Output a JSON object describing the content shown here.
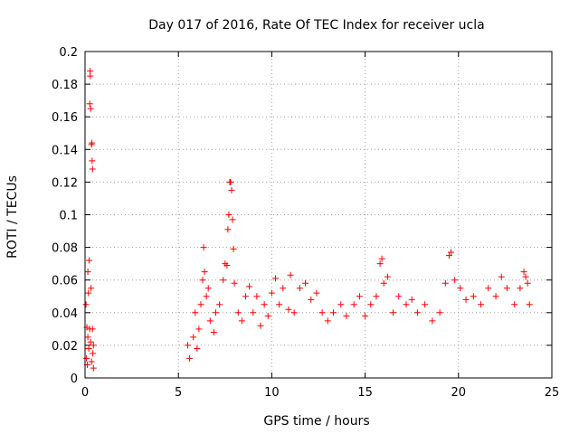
{
  "chart_data": {
    "type": "scatter",
    "title": "Day 017 of 2016, Rate Of TEC Index for receiver ucla",
    "xlabel": "GPS time / hours",
    "ylabel": "ROTI / TECUs",
    "xlim": [
      0,
      25
    ],
    "ylim": [
      0,
      0.2
    ],
    "xticks": [
      0,
      5,
      10,
      15,
      20,
      25
    ],
    "xtick_labels": [
      "0",
      "5",
      "10",
      "15",
      "20",
      "25"
    ],
    "yticks": [
      0,
      0.02,
      0.04,
      0.06,
      0.08,
      0.1,
      0.12,
      0.14,
      0.16,
      0.18,
      0.2
    ],
    "ytick_labels": [
      "0",
      "0.02",
      "0.04",
      "0.06",
      "0.08",
      "0.1",
      "0.12",
      "0.14",
      "0.16",
      "0.18",
      "0.2"
    ],
    "grid": true,
    "marker": "+",
    "color": "#ff0000",
    "series": [
      {
        "name": "ROTI",
        "points": [
          [
            0.05,
            0.045
          ],
          [
            0.08,
            0.012
          ],
          [
            0.1,
            0.031
          ],
          [
            0.12,
            0.008
          ],
          [
            0.15,
            0.025
          ],
          [
            0.15,
            0.065
          ],
          [
            0.18,
            0.052
          ],
          [
            0.2,
            0.018
          ],
          [
            0.22,
            0.072
          ],
          [
            0.25,
            0.03
          ],
          [
            0.25,
            0.168
          ],
          [
            0.27,
            0.188
          ],
          [
            0.28,
            0.185
          ],
          [
            0.3,
            0.165
          ],
          [
            0.3,
            0.022
          ],
          [
            0.32,
            0.055
          ],
          [
            0.35,
            0.01
          ],
          [
            0.35,
            0.143
          ],
          [
            0.37,
            0.144
          ],
          [
            0.38,
            0.133
          ],
          [
            0.4,
            0.128
          ],
          [
            0.4,
            0.03
          ],
          [
            0.42,
            0.015
          ],
          [
            0.45,
            0.02
          ],
          [
            0.45,
            0.006
          ],
          [
            5.5,
            0.02
          ],
          [
            5.6,
            0.012
          ],
          [
            5.8,
            0.025
          ],
          [
            5.9,
            0.04
          ],
          [
            6.0,
            0.018
          ],
          [
            6.1,
            0.03
          ],
          [
            6.2,
            0.045
          ],
          [
            6.3,
            0.06
          ],
          [
            6.35,
            0.08
          ],
          [
            6.4,
            0.065
          ],
          [
            6.5,
            0.05
          ],
          [
            6.6,
            0.055
          ],
          [
            6.7,
            0.035
          ],
          [
            6.9,
            0.028
          ],
          [
            7.0,
            0.04
          ],
          [
            7.2,
            0.045
          ],
          [
            7.4,
            0.06
          ],
          [
            7.5,
            0.07
          ],
          [
            7.6,
            0.069
          ],
          [
            7.65,
            0.091
          ],
          [
            7.7,
            0.1
          ],
          [
            7.75,
            0.12
          ],
          [
            7.8,
            0.12
          ],
          [
            7.85,
            0.115
          ],
          [
            7.9,
            0.097
          ],
          [
            7.95,
            0.079
          ],
          [
            8.0,
            0.058
          ],
          [
            8.2,
            0.04
          ],
          [
            8.4,
            0.035
          ],
          [
            8.6,
            0.05
          ],
          [
            8.8,
            0.056
          ],
          [
            9.0,
            0.04
          ],
          [
            9.2,
            0.05
          ],
          [
            9.4,
            0.032
          ],
          [
            9.6,
            0.045
          ],
          [
            9.8,
            0.038
          ],
          [
            10.0,
            0.052
          ],
          [
            10.2,
            0.061
          ],
          [
            10.4,
            0.045
          ],
          [
            10.6,
            0.055
          ],
          [
            10.9,
            0.042
          ],
          [
            11.0,
            0.063
          ],
          [
            11.2,
            0.04
          ],
          [
            11.5,
            0.055
          ],
          [
            11.8,
            0.058
          ],
          [
            12.1,
            0.048
          ],
          [
            12.4,
            0.052
          ],
          [
            12.7,
            0.04
          ],
          [
            13.0,
            0.035
          ],
          [
            13.3,
            0.04
          ],
          [
            13.7,
            0.045
          ],
          [
            14.0,
            0.038
          ],
          [
            14.4,
            0.045
          ],
          [
            14.7,
            0.05
          ],
          [
            15.0,
            0.038
          ],
          [
            15.3,
            0.045
          ],
          [
            15.6,
            0.05
          ],
          [
            15.8,
            0.07
          ],
          [
            15.9,
            0.073
          ],
          [
            16.0,
            0.058
          ],
          [
            16.2,
            0.062
          ],
          [
            16.5,
            0.04
          ],
          [
            16.8,
            0.05
          ],
          [
            17.2,
            0.045
          ],
          [
            17.5,
            0.048
          ],
          [
            17.8,
            0.04
          ],
          [
            18.2,
            0.045
          ],
          [
            18.6,
            0.035
          ],
          [
            19.0,
            0.04
          ],
          [
            19.3,
            0.058
          ],
          [
            19.5,
            0.075
          ],
          [
            19.6,
            0.077
          ],
          [
            19.8,
            0.06
          ],
          [
            20.1,
            0.055
          ],
          [
            20.4,
            0.048
          ],
          [
            20.8,
            0.05
          ],
          [
            21.2,
            0.045
          ],
          [
            21.6,
            0.055
          ],
          [
            22.0,
            0.05
          ],
          [
            22.3,
            0.062
          ],
          [
            22.6,
            0.055
          ],
          [
            23.0,
            0.045
          ],
          [
            23.3,
            0.055
          ],
          [
            23.5,
            0.065
          ],
          [
            23.6,
            0.062
          ],
          [
            23.7,
            0.058
          ],
          [
            23.8,
            0.045
          ]
        ]
      }
    ]
  }
}
